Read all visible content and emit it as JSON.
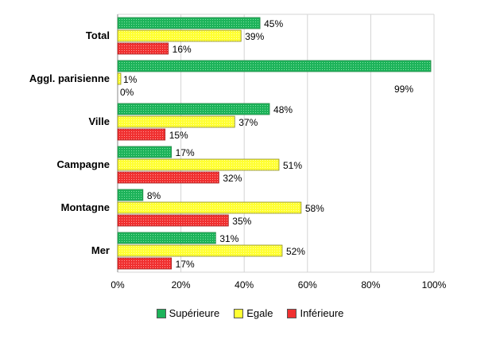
{
  "chart_data": {
    "type": "bar",
    "orientation": "horizontal",
    "categories": [
      "Total",
      "Aggl. parisienne",
      "Ville",
      "Campagne",
      "Montagne",
      "Mer"
    ],
    "series": [
      {
        "name": "Supérieure",
        "color": "#1db35a",
        "edge": "#2a8a4a",
        "values": [
          45,
          99,
          48,
          17,
          8,
          31
        ],
        "labels": [
          "45%",
          "99%",
          "48%",
          "17%",
          "8%",
          "31%"
        ]
      },
      {
        "name": "Egale",
        "color": "#ffff33",
        "edge": "#8a8a20",
        "values": [
          39,
          1,
          37,
          51,
          58,
          52
        ],
        "labels": [
          "39%",
          "1%",
          "37%",
          "51%",
          "58%",
          "52%"
        ]
      },
      {
        "name": "Inférieure",
        "color": "#f03030",
        "edge": "#a02020",
        "values": [
          16,
          0,
          15,
          32,
          35,
          17
        ],
        "labels": [
          "16%",
          "0%",
          "15%",
          "32%",
          "35%",
          "17%"
        ]
      }
    ],
    "xlim": [
      0,
      100
    ],
    "xticks": [
      "0%",
      "20%",
      "40%",
      "60%",
      "80%",
      "100%"
    ],
    "grid": true,
    "legend_position": "bottom"
  }
}
